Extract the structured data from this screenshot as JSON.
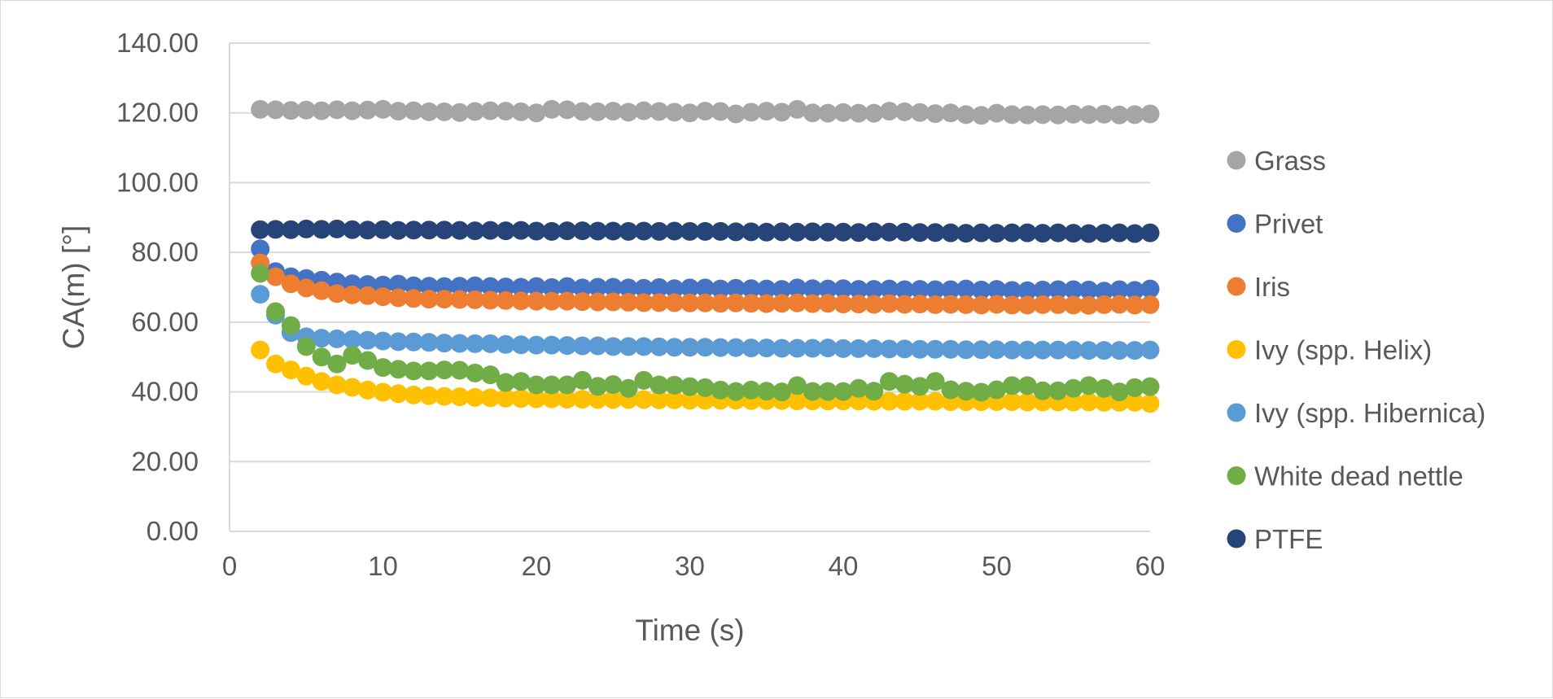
{
  "chart_data": {
    "type": "scatter",
    "title": "",
    "xlabel": "Time (s)",
    "ylabel": "CA(m) [°]",
    "xlim": [
      0,
      60
    ],
    "ylim": [
      0,
      140
    ],
    "x_ticks": [
      0,
      10,
      20,
      30,
      40,
      50,
      60
    ],
    "x_tick_labels": [
      "0",
      "10",
      "20",
      "30",
      "40",
      "50",
      "60"
    ],
    "y_ticks": [
      0,
      20,
      40,
      60,
      80,
      100,
      120,
      140
    ],
    "y_tick_labels": [
      "0.00",
      "20.00",
      "40.00",
      "60.00",
      "80.00",
      "100.00",
      "120.00",
      "140.00"
    ],
    "grid": "horizontal",
    "legend_position": "right",
    "x": [
      2,
      3,
      4,
      5,
      6,
      7,
      8,
      9,
      10,
      11,
      12,
      13,
      14,
      15,
      16,
      17,
      18,
      19,
      20,
      21,
      22,
      23,
      24,
      25,
      26,
      27,
      28,
      29,
      30,
      31,
      32,
      33,
      34,
      35,
      36,
      37,
      38,
      39,
      40,
      41,
      42,
      43,
      44,
      45,
      46,
      47,
      48,
      49,
      50,
      51,
      52,
      53,
      54,
      55,
      56,
      57,
      58,
      59,
      60
    ],
    "series": [
      {
        "name": "Grass",
        "color": "#A5A5A5",
        "values": [
          121.0,
          120.9,
          120.7,
          120.8,
          120.6,
          120.9,
          120.6,
          120.8,
          121.0,
          120.5,
          120.6,
          120.3,
          120.3,
          120.1,
          120.4,
          120.6,
          120.5,
          120.3,
          120.0,
          121.0,
          120.9,
          120.4,
          120.3,
          120.5,
          120.2,
          120.6,
          120.4,
          120.2,
          120.0,
          120.5,
          120.4,
          119.7,
          120.2,
          120.5,
          120.2,
          121.0,
          120.0,
          119.9,
          120.1,
          119.9,
          119.9,
          120.5,
          120.3,
          120.1,
          119.8,
          120.0,
          119.5,
          119.3,
          119.9,
          119.5,
          119.4,
          119.5,
          119.4,
          119.6,
          119.5,
          119.6,
          119.4,
          119.5,
          119.7
        ]
      },
      {
        "name": "Privet",
        "color": "#4472C4",
        "values": [
          81.0,
          74.5,
          73.0,
          72.5,
          72.0,
          71.5,
          71.0,
          70.8,
          70.6,
          70.9,
          70.4,
          70.3,
          70.2,
          70.3,
          70.4,
          70.2,
          70.1,
          70.0,
          70.2,
          69.9,
          70.2,
          69.8,
          70.0,
          70.0,
          69.8,
          69.7,
          69.9,
          69.6,
          69.8,
          69.8,
          69.5,
          69.7,
          69.6,
          69.5,
          69.4,
          69.8,
          69.6,
          69.5,
          69.6,
          69.4,
          69.4,
          69.5,
          69.3,
          69.4,
          69.3,
          69.3,
          69.5,
          69.2,
          69.4,
          69.1,
          69.0,
          69.2,
          69.3,
          69.3,
          69.2,
          68.9,
          69.3,
          69.1,
          69.5
        ]
      },
      {
        "name": "Iris",
        "color": "#ED7D31",
        "values": [
          77.0,
          73.0,
          71.0,
          69.8,
          69.0,
          68.2,
          67.8,
          67.6,
          67.3,
          67.0,
          66.8,
          66.6,
          66.6,
          66.5,
          66.4,
          66.3,
          66.2,
          66.1,
          66.0,
          66.0,
          66.0,
          65.9,
          65.8,
          65.8,
          65.7,
          65.6,
          65.6,
          65.6,
          65.5,
          65.5,
          65.4,
          65.5,
          65.4,
          65.3,
          65.4,
          65.5,
          65.3,
          65.4,
          65.2,
          65.2,
          65.1,
          65.3,
          65.1,
          65.2,
          65.0,
          65.1,
          65.0,
          64.9,
          65.1,
          64.9,
          64.9,
          65.0,
          65.0,
          64.9,
          64.8,
          65.0,
          65.1,
          64.9,
          65.0
        ]
      },
      {
        "name": "Ivy (spp. Helix)",
        "color": "#FFC000",
        "values": [
          52.0,
          48.0,
          46.3,
          44.5,
          43.0,
          42.0,
          41.3,
          40.5,
          39.9,
          39.5,
          39.1,
          38.9,
          38.7,
          38.6,
          38.4,
          38.3,
          38.2,
          38.1,
          38.0,
          38.0,
          37.9,
          37.9,
          37.8,
          37.8,
          37.8,
          37.8,
          37.7,
          37.7,
          37.6,
          37.6,
          37.6,
          37.6,
          37.5,
          37.5,
          37.5,
          37.4,
          37.4,
          37.4,
          37.4,
          37.4,
          37.3,
          37.3,
          37.3,
          37.3,
          37.3,
          37.2,
          37.2,
          37.2,
          37.2,
          37.2,
          37.1,
          37.1,
          37.1,
          37.1,
          37.1,
          37.0,
          37.0,
          37.0,
          36.7
        ]
      },
      {
        "name": "Ivy (spp. Hibernica)",
        "color": "#5B9BD5",
        "values": [
          68.0,
          62.0,
          57.0,
          55.8,
          55.4,
          55.2,
          55.0,
          54.8,
          54.6,
          54.4,
          54.3,
          54.2,
          54.0,
          53.9,
          53.8,
          53.8,
          53.6,
          53.5,
          53.4,
          53.4,
          53.3,
          53.2,
          53.2,
          53.0,
          53.0,
          53.0,
          52.9,
          52.8,
          52.8,
          52.8,
          52.7,
          52.7,
          52.6,
          52.6,
          52.5,
          52.5,
          52.5,
          52.6,
          52.4,
          52.4,
          52.4,
          52.3,
          52.3,
          52.2,
          52.2,
          52.2,
          52.1,
          52.1,
          52.1,
          52.0,
          52.0,
          52.0,
          52.0,
          52.0,
          51.9,
          51.9,
          51.9,
          51.9,
          52.0
        ]
      },
      {
        "name": "White dead nettle",
        "color": "#70AD47",
        "values": [
          74.0,
          63.0,
          59.0,
          53.0,
          50.0,
          48.0,
          50.5,
          49.0,
          47.0,
          46.5,
          46.0,
          46.0,
          46.3,
          46.2,
          45.4,
          44.9,
          42.7,
          43.0,
          42.0,
          42.0,
          42.0,
          43.3,
          41.6,
          42.1,
          41.0,
          43.3,
          42.0,
          41.9,
          41.5,
          41.2,
          40.5,
          40.1,
          40.5,
          40.2,
          40.0,
          41.8,
          40.1,
          40.1,
          40.1,
          41.0,
          40.2,
          43.0,
          42.2,
          41.6,
          43.0,
          40.6,
          40.2,
          39.9,
          40.6,
          41.8,
          41.8,
          40.3,
          40.3,
          41.0,
          41.8,
          41.0,
          40.0,
          41.2,
          41.5
        ]
      },
      {
        "name": "PTFE",
        "color": "#264478",
        "values": [
          86.5,
          86.6,
          86.5,
          86.7,
          86.6,
          86.7,
          86.5,
          86.4,
          86.5,
          86.3,
          86.4,
          86.4,
          86.4,
          86.3,
          86.2,
          86.3,
          86.2,
          86.3,
          86.1,
          86.0,
          86.2,
          86.2,
          86.1,
          86.1,
          86.0,
          86.1,
          86.0,
          86.1,
          86.0,
          86.0,
          86.0,
          85.9,
          85.9,
          85.8,
          85.9,
          85.8,
          85.9,
          85.8,
          85.8,
          85.7,
          85.9,
          85.8,
          85.8,
          85.7,
          85.7,
          85.6,
          85.5,
          85.6,
          85.5,
          85.6,
          85.6,
          85.5,
          85.6,
          85.5,
          85.4,
          85.5,
          85.6,
          85.4,
          85.6
        ]
      }
    ]
  }
}
